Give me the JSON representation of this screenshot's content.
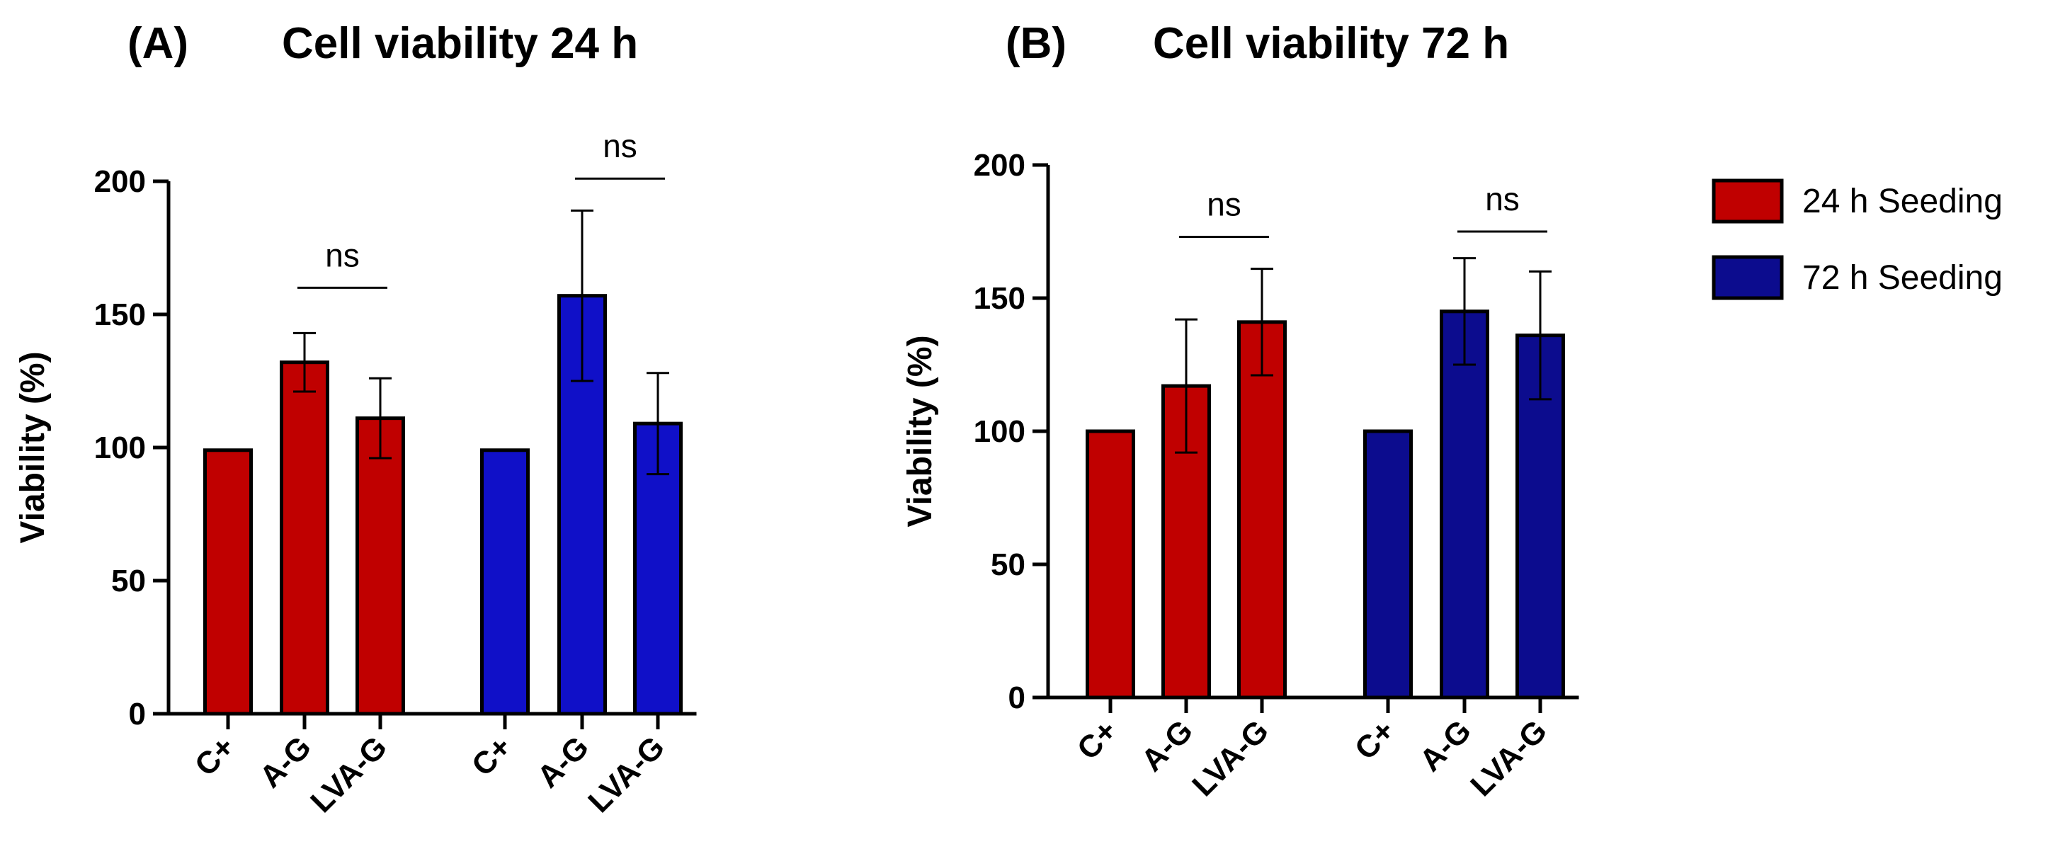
{
  "chart_data": [
    {
      "type": "bar",
      "panel": "(A)",
      "title": "Cell viability 24 h",
      "xlabel": "",
      "ylabel": "Viability (%)",
      "ylim": [
        0,
        200
      ],
      "yticks": [
        "0",
        "50",
        "100",
        "150",
        "200"
      ],
      "categories": [
        "C+",
        "A-G",
        "LVA-G"
      ],
      "series": [
        {
          "name": "24 h Seeding",
          "color": "#C00000",
          "values": [
            99,
            132,
            111
          ],
          "errors": [
            0,
            11,
            15
          ]
        },
        {
          "name": "72 h Seeding",
          "color": "#1010C8",
          "values": [
            99,
            157,
            109
          ],
          "errors": [
            0,
            32,
            19
          ]
        }
      ],
      "annotations": [
        {
          "text": "ns",
          "series": 0,
          "from": 1,
          "to": 2,
          "level": 160
        },
        {
          "text": "ns",
          "series": 1,
          "from": 1,
          "to": 2,
          "level": 201
        }
      ]
    },
    {
      "type": "bar",
      "panel": "(B)",
      "title": "Cell viability 72 h",
      "xlabel": "",
      "ylabel": "Viability (%)",
      "ylim": [
        0,
        200
      ],
      "yticks": [
        "0",
        "50",
        "100",
        "150",
        "200"
      ],
      "categories": [
        "C+",
        "A-G",
        "LVA-G"
      ],
      "series": [
        {
          "name": "24 h Seeding",
          "color": "#C00000",
          "values": [
            100,
            117,
            141
          ],
          "errors": [
            0,
            25,
            20
          ]
        },
        {
          "name": "72 h Seeding",
          "color": "#0C0C8E",
          "values": [
            100,
            145,
            136
          ],
          "errors": [
            0,
            20,
            24
          ]
        }
      ],
      "annotations": [
        {
          "text": "ns",
          "series": 0,
          "from": 1,
          "to": 2,
          "level": 173
        },
        {
          "text": "ns",
          "series": 1,
          "from": 1,
          "to": 2,
          "level": 175
        }
      ]
    }
  ],
  "legend": {
    "items": [
      {
        "label": "24 h Seeding",
        "color": "#C00000"
      },
      {
        "label": "72 h Seeding",
        "color": "#0C0C8E"
      }
    ]
  }
}
